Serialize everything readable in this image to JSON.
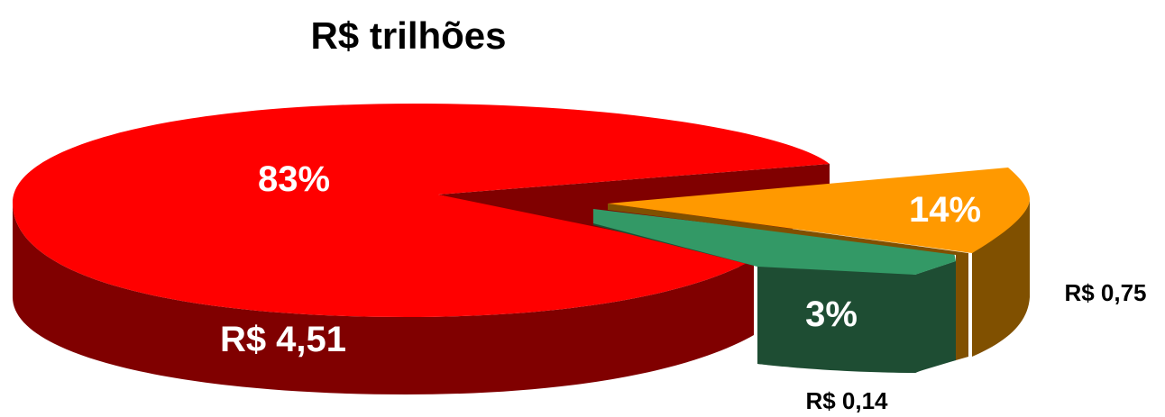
{
  "chart_data": {
    "type": "pie",
    "title": "R$ trilhões",
    "slices": [
      {
        "percent_label": "83%",
        "value_label": "R$ 4,51",
        "value": 4.51,
        "color_top": "#ff0000",
        "color_side": "#800000"
      },
      {
        "percent_label": "14%",
        "value_label": "R$ 0,75",
        "value": 0.75,
        "color_top": "#ff9900",
        "color_side": "#805000"
      },
      {
        "percent_label": "3%",
        "value_label": "R$ 0,14",
        "value": 0.14,
        "color_top": "#339966",
        "color_side": "#1e4d33"
      }
    ],
    "exploded": true,
    "three_d": true,
    "legend": false
  }
}
